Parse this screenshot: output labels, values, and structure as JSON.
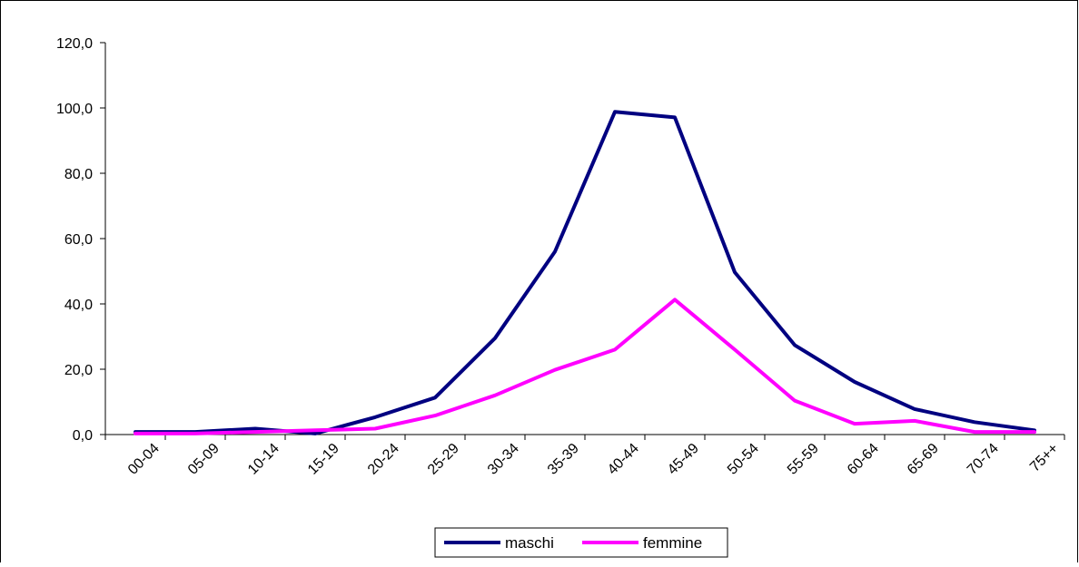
{
  "chart_data": {
    "type": "line",
    "title": "",
    "xlabel": "",
    "ylabel": "",
    "categories": [
      "00-04",
      "05-09",
      "10-14",
      "15-19",
      "20-24",
      "25-29",
      "30-34",
      "35-39",
      "40-44",
      "45-49",
      "50-54",
      "55-59",
      "60-64",
      "65-69",
      "70-74",
      "75++"
    ],
    "ylim": [
      0,
      120
    ],
    "yticks": [
      0,
      20,
      40,
      60,
      80,
      100,
      120
    ],
    "ytick_labels": [
      "0,0",
      "20,0",
      "40,0",
      "60,0",
      "80,0",
      "100,0",
      "120,0"
    ],
    "grid": false,
    "legend_position": "bottom",
    "series": [
      {
        "name": "maschi",
        "color": "#000080",
        "values": [
          0.8,
          0.8,
          1.8,
          0.3,
          5.3,
          11.3,
          29.5,
          56.0,
          98.8,
          97.1,
          49.7,
          27.4,
          16.1,
          7.8,
          3.8,
          1.3
        ]
      },
      {
        "name": "femmine",
        "color": "#FF00FF",
        "values": [
          0.3,
          0.3,
          0.8,
          1.3,
          1.8,
          5.8,
          12.0,
          19.8,
          26.0,
          41.3,
          26.0,
          10.4,
          3.3,
          4.2,
          0.8,
          0.8
        ]
      }
    ]
  }
}
